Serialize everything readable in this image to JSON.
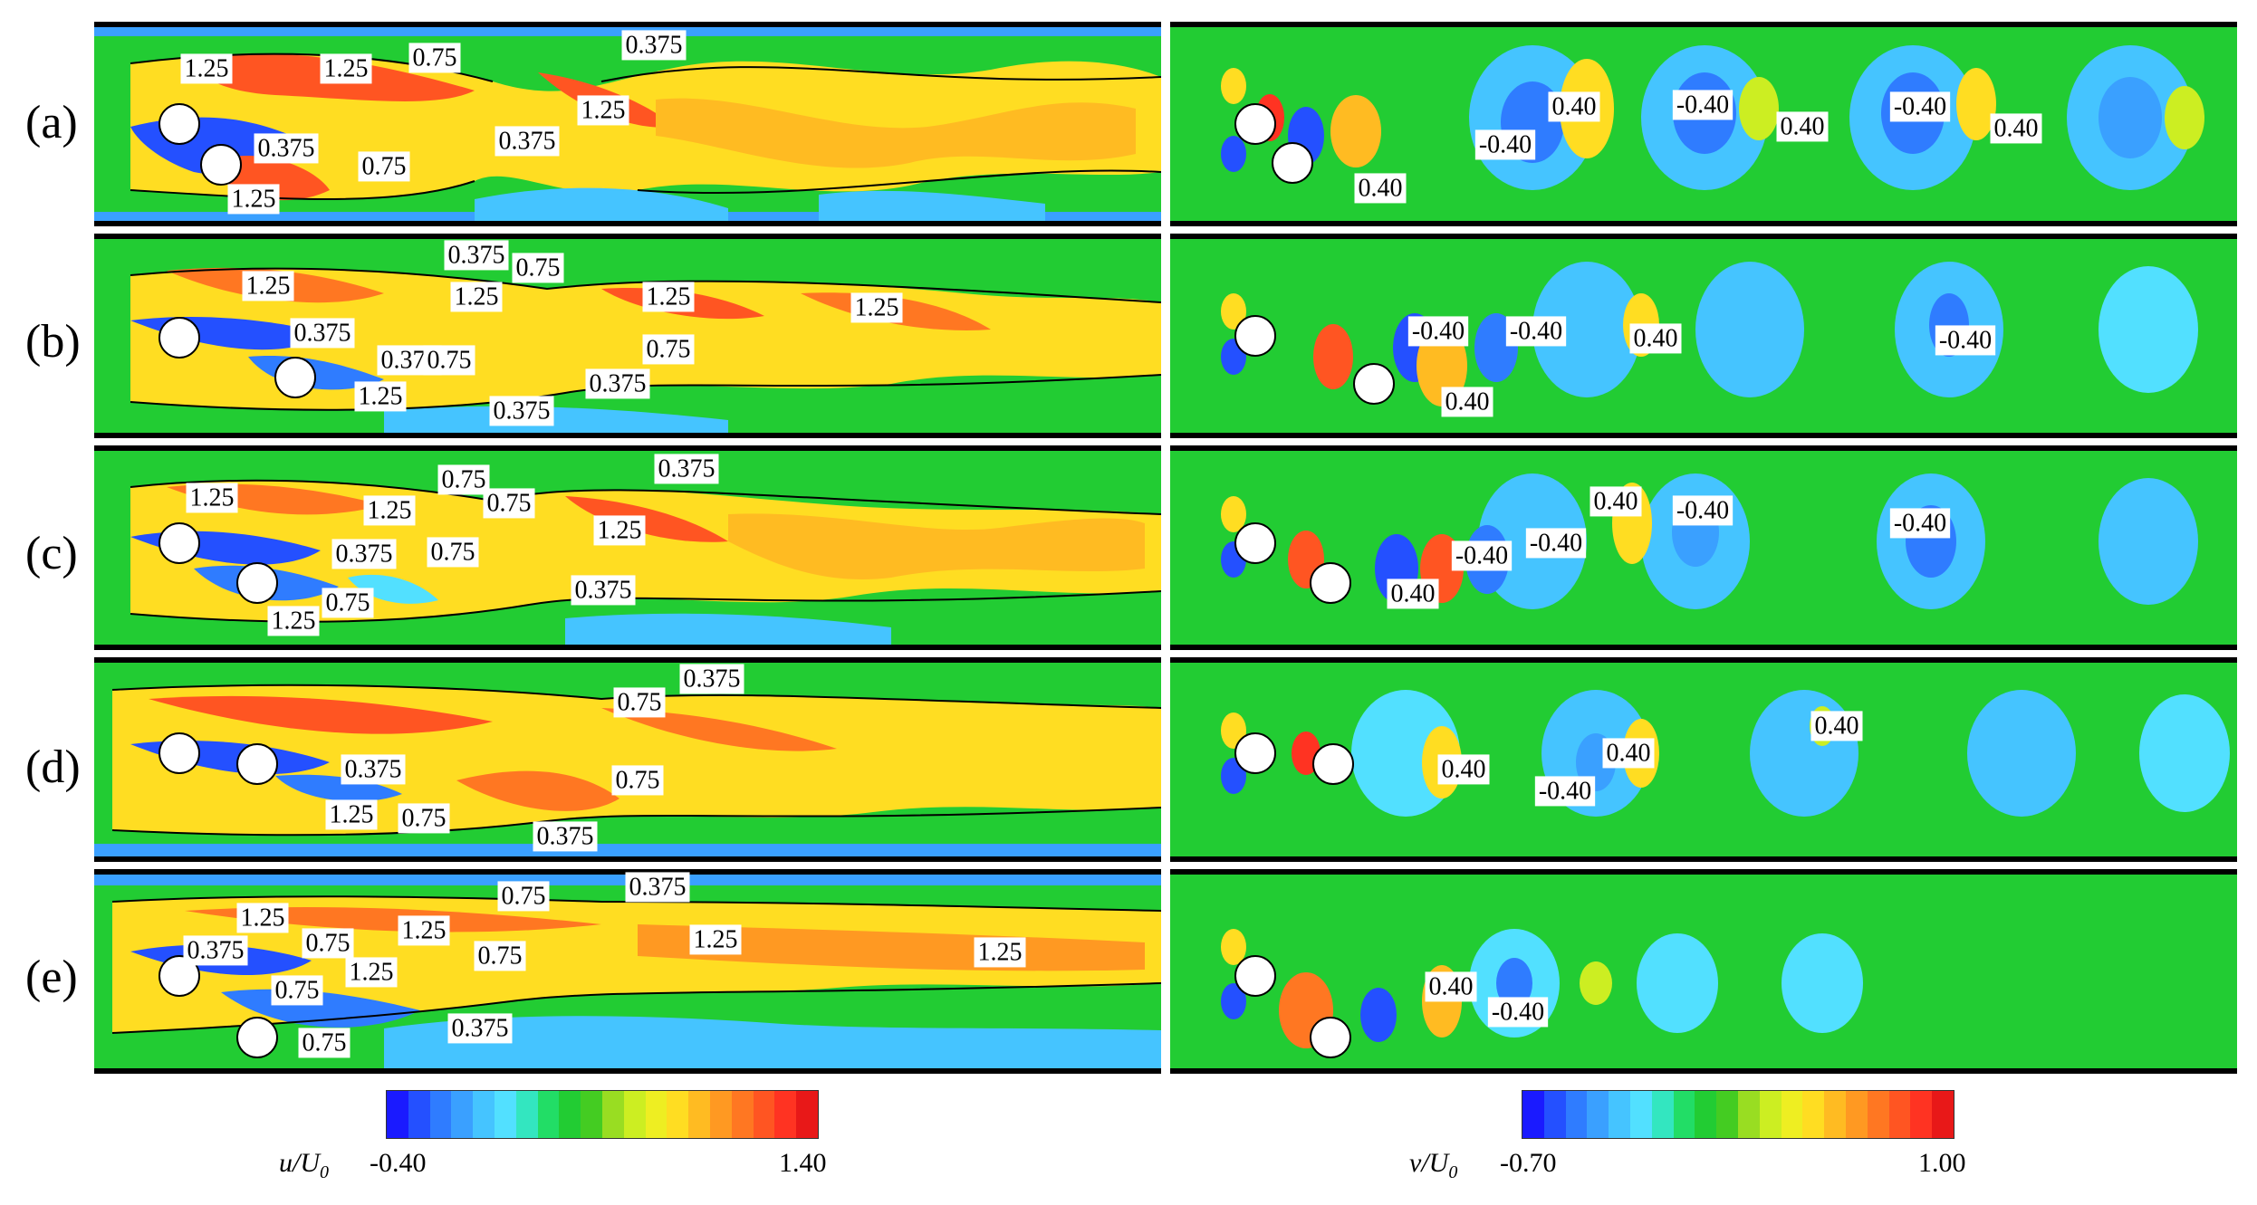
{
  "rows": [
    {
      "label": "(a)",
      "u_labels": [
        "1.25",
        "1.25",
        "0.75",
        "0.375",
        "1.25",
        "0.375",
        "0.75",
        "0.375",
        "1.25"
      ],
      "v_labels": [
        "0.40",
        "0.40",
        "-0.40",
        "-0.40",
        "0.40",
        "-0.40",
        "0.40"
      ]
    },
    {
      "label": "(b)",
      "u_labels": [
        "1.25",
        "0.375",
        "0.75",
        "1.25",
        "1.25",
        "1.25",
        "0.375",
        "0.75",
        "0.375",
        "1.25",
        "0.75",
        "0.375",
        "0.375"
      ],
      "v_labels": [
        "-0.40",
        "-0.40",
        "0.40",
        "0.40",
        "-0.40"
      ]
    },
    {
      "label": "(c)",
      "u_labels": [
        "1.25",
        "1.25",
        "0.75",
        "0.75",
        "0.375",
        "1.25",
        "0.375",
        "0.75",
        "0.375",
        "1.25",
        "0.75"
      ],
      "v_labels": [
        "0.40",
        "-0.40",
        "-0.40",
        "-0.40",
        "0.40",
        "-0.40"
      ]
    },
    {
      "label": "(d)",
      "u_labels": [
        "0.375",
        "0.75",
        "0.375",
        "0.75",
        "1.25",
        "0.75",
        "0.375"
      ],
      "v_labels": [
        "0.40",
        "0.40",
        "0.40",
        "-0.40"
      ]
    },
    {
      "label": "(e)",
      "u_labels": [
        "1.25",
        "1.25",
        "0.75",
        "0.375",
        "0.375",
        "0.75",
        "1.25",
        "1.25",
        "0.75",
        "1.25",
        "0.75",
        "0.375",
        "0.75"
      ],
      "v_labels": [
        "0.40",
        "-0.40"
      ]
    }
  ],
  "colorbars": {
    "u": {
      "variable": "u/U",
      "subscript": "0",
      "min_label": "-0.40",
      "max_label": "1.40",
      "min": -0.4,
      "max": 1.4
    },
    "v": {
      "variable": "v/U",
      "subscript": "0",
      "min_label": "-0.70",
      "max_label": "1.00",
      "min": -0.7,
      "max": 1.0
    }
  },
  "colormap": [
    "#1a1aff",
    "#2450ff",
    "#2f7cff",
    "#3aa0ff",
    "#45c4ff",
    "#52e0ff",
    "#33e6c0",
    "#22dd66",
    "#22cc33",
    "#44cc22",
    "#99dd22",
    "#ccee22",
    "#eeee22",
    "#ffdd22",
    "#ffbb22",
    "#ff9922",
    "#ff7722",
    "#ff5522",
    "#ff3322",
    "#e81818"
  ]
}
